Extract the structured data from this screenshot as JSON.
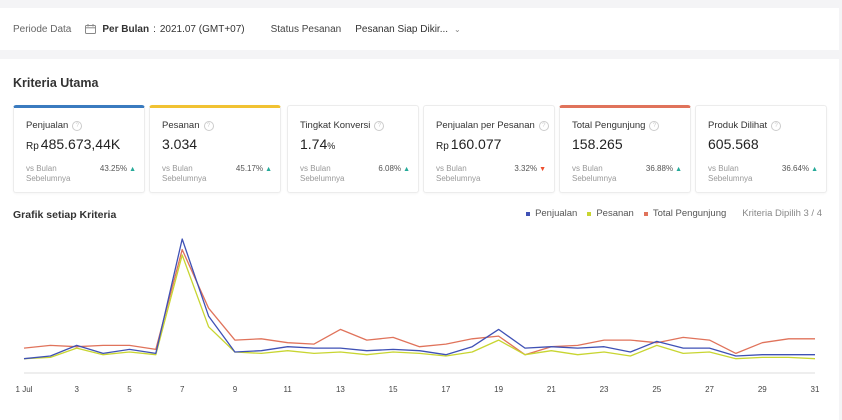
{
  "filter": {
    "period_label": "Periode Data",
    "period_type": "Per Bulan",
    "period_separator": ":",
    "period_value": "2021.07 (GMT+07)",
    "status_label": "Status Pesanan",
    "status_value": "Pesanan Siap Dikir..."
  },
  "section_title": "Kriteria Utama",
  "cards": [
    {
      "title": "Penjualan",
      "currency": "Rp",
      "value": "485.673,44K",
      "unit": "",
      "compare": "vs Bulan Sebelumnya",
      "pct": "43.25%",
      "trend": "up",
      "highlight": "#3a7bbf"
    },
    {
      "title": "Pesanan",
      "currency": "",
      "value": "3.034",
      "unit": "",
      "compare": "vs Bulan Sebelumnya",
      "pct": "45.17%",
      "trend": "up",
      "highlight": "#f1c232"
    },
    {
      "title": "Tingkat Konversi",
      "currency": "",
      "value": "1.74",
      "unit": "%",
      "compare": "vs Bulan Sebelumnya",
      "pct": "6.08%",
      "trend": "up",
      "highlight": ""
    },
    {
      "title": "Penjualan per Pesanan",
      "currency": "Rp",
      "value": "160.077",
      "unit": "",
      "compare": "vs Bulan Sebelumnya",
      "pct": "3.32%",
      "trend": "down",
      "highlight": ""
    },
    {
      "title": "Total Pengunjung",
      "currency": "",
      "value": "158.265",
      "unit": "",
      "compare": "vs Bulan Sebelumnya",
      "pct": "36.88%",
      "trend": "up",
      "highlight": "#e0735b"
    },
    {
      "title": "Produk Dilihat",
      "currency": "",
      "value": "605.568",
      "unit": "",
      "compare": "vs Bulan Sebelumnya",
      "pct": "36.64%",
      "trend": "up",
      "highlight": ""
    }
  ],
  "chart_title": "Grafik setiap Kriteria",
  "legend_more": "Kriteria Dipilih 3 / 4",
  "chart_data": {
    "type": "line",
    "x": [
      1,
      2,
      3,
      4,
      5,
      6,
      7,
      8,
      9,
      10,
      11,
      12,
      13,
      14,
      15,
      16,
      17,
      18,
      19,
      20,
      21,
      22,
      23,
      24,
      25,
      26,
      27,
      28,
      29,
      30,
      31
    ],
    "xtick_labels": [
      "1 Jul",
      "3",
      "5",
      "7",
      "9",
      "11",
      "13",
      "15",
      "17",
      "19",
      "21",
      "23",
      "25",
      "27",
      "29",
      "31"
    ],
    "xtick_positions": [
      1,
      3,
      5,
      7,
      9,
      11,
      13,
      15,
      17,
      19,
      21,
      23,
      25,
      27,
      29,
      31
    ],
    "ylim": [
      0,
      100
    ],
    "grid": false,
    "legend_position": "top-right",
    "series": [
      {
        "name": "Penjualan",
        "color": "#3f51b5",
        "values": [
          10,
          12,
          20,
          14,
          17,
          14,
          100,
          42,
          15,
          16,
          19,
          18,
          18,
          16,
          17,
          16,
          13,
          19,
          32,
          18,
          19,
          18,
          19,
          15,
          23,
          18,
          18,
          12,
          13,
          13,
          13
        ]
      },
      {
        "name": "Pesanan",
        "color": "#c8d531",
        "values": [
          10,
          11,
          18,
          13,
          15,
          13,
          88,
          34,
          15,
          14,
          16,
          14,
          15,
          13,
          15,
          14,
          12,
          15,
          24,
          13,
          16,
          13,
          15,
          12,
          20,
          14,
          15,
          10,
          11,
          11,
          10
        ]
      },
      {
        "name": "Total Pengunjung",
        "color": "#e0735b",
        "values": [
          18,
          20,
          19,
          20,
          20,
          17,
          92,
          48,
          24,
          25,
          22,
          21,
          32,
          24,
          26,
          19,
          21,
          25,
          27,
          13,
          19,
          20,
          24,
          24,
          22,
          26,
          24,
          14,
          22,
          25,
          25
        ]
      }
    ]
  }
}
